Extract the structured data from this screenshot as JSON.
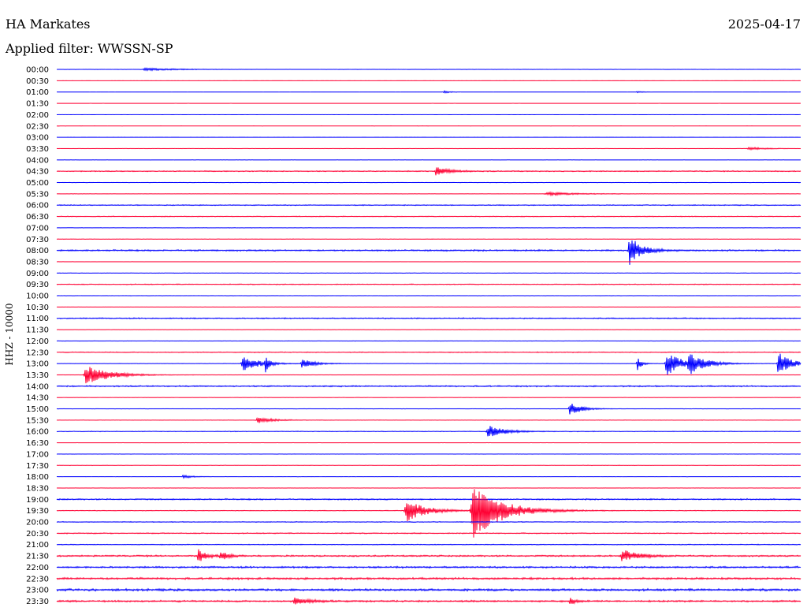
{
  "header": {
    "station": "HA Markates",
    "date": "2025-04-17",
    "filter": "Applied filter: WWSSN-SP"
  },
  "chart_data": {
    "type": "line",
    "title": "HA Markates",
    "subtitle": "Applied filter: WWSSN-SP",
    "ylabel": "HHZ - 10000",
    "colors": [
      "#0000ff",
      "#ff0033"
    ],
    "rows": [
      "00:00",
      "00:30",
      "01:00",
      "01:30",
      "02:00",
      "02:30",
      "03:00",
      "03:30",
      "04:00",
      "04:30",
      "05:00",
      "05:30",
      "06:00",
      "06:30",
      "07:00",
      "07:30",
      "08:00",
      "08:30",
      "09:00",
      "09:30",
      "10:00",
      "10:30",
      "11:00",
      "11:30",
      "12:00",
      "12:30",
      "13:00",
      "13:30",
      "14:00",
      "14:30",
      "15:00",
      "15:30",
      "16:00",
      "16:30",
      "17:00",
      "17:30",
      "18:00",
      "18:30",
      "19:00",
      "19:30",
      "20:00",
      "20:30",
      "21:00",
      "21:30",
      "22:00",
      "22:30",
      "23:00",
      "23:30"
    ],
    "noise": [
      0.1,
      0.05,
      0.05,
      0.05,
      0.05,
      0.05,
      0.05,
      0.15,
      0.1,
      0.45,
      0.1,
      0.15,
      0.4,
      0.35,
      0.2,
      0.2,
      0.7,
      0.1,
      0.2,
      0.4,
      0.1,
      0.15,
      0.5,
      0.15,
      0.2,
      0.4,
      0.2,
      0.15,
      0.6,
      0.1,
      0.15,
      0.2,
      0.3,
      0.1,
      0.15,
      0.2,
      0.1,
      0.15,
      0.6,
      0.3,
      0.35,
      0.45,
      0.35,
      0.7,
      0.8,
      0.9,
      1.0,
      0.8
    ],
    "events": [
      {
        "row": "00:00",
        "t": 0.12,
        "amp": 1.5,
        "dur": 0.05
      },
      {
        "row": "01:00",
        "t": 0.52,
        "amp": 1.5,
        "dur": 0.01
      },
      {
        "row": "01:00",
        "t": 0.78,
        "amp": 1,
        "dur": 0.01
      },
      {
        "row": "03:30",
        "t": 0.93,
        "amp": 2,
        "dur": 0.02
      },
      {
        "row": "04:30",
        "t": 0.51,
        "amp": 6,
        "dur": 0.015
      },
      {
        "row": "05:30",
        "t": 0.66,
        "amp": 2,
        "dur": 0.04
      },
      {
        "row": "08:00",
        "t": 0.77,
        "amp": 18,
        "dur": 0.015
      },
      {
        "row": "13:00",
        "t": 0.25,
        "amp": 10,
        "dur": 0.02
      },
      {
        "row": "13:00",
        "t": 0.28,
        "amp": 12,
        "dur": 0.005
      },
      {
        "row": "13:00",
        "t": 0.33,
        "amp": 6,
        "dur": 0.015
      },
      {
        "row": "13:00",
        "t": 0.78,
        "amp": 10,
        "dur": 0.005
      },
      {
        "row": "13:00",
        "t": 0.82,
        "amp": 15,
        "dur": 0.02
      },
      {
        "row": "13:00",
        "t": 0.85,
        "amp": 12,
        "dur": 0.02
      },
      {
        "row": "13:00",
        "t": 0.97,
        "amp": 16,
        "dur": 0.015
      },
      {
        "row": "13:30",
        "t": 0.04,
        "amp": 12,
        "dur": 0.03
      },
      {
        "row": "15:00",
        "t": 0.69,
        "amp": 8,
        "dur": 0.015
      },
      {
        "row": "15:30",
        "t": 0.27,
        "amp": 4,
        "dur": 0.02
      },
      {
        "row": "16:00",
        "t": 0.58,
        "amp": 8,
        "dur": 0.02
      },
      {
        "row": "18:00",
        "t": 0.17,
        "amp": 2,
        "dur": 0.015
      },
      {
        "row": "19:30",
        "t": 0.47,
        "amp": 14,
        "dur": 0.025
      },
      {
        "row": "19:30",
        "t": 0.56,
        "amp": 36,
        "dur": 0.035
      },
      {
        "row": "21:30",
        "t": 0.19,
        "amp": 9,
        "dur": 0.01
      },
      {
        "row": "21:30",
        "t": 0.22,
        "amp": 6,
        "dur": 0.01
      },
      {
        "row": "21:30",
        "t": 0.76,
        "amp": 8,
        "dur": 0.02
      },
      {
        "row": "23:30",
        "t": 0.32,
        "amp": 4,
        "dur": 0.02
      },
      {
        "row": "23:30",
        "t": 0.69,
        "amp": 6,
        "dur": 0.005
      }
    ]
  }
}
